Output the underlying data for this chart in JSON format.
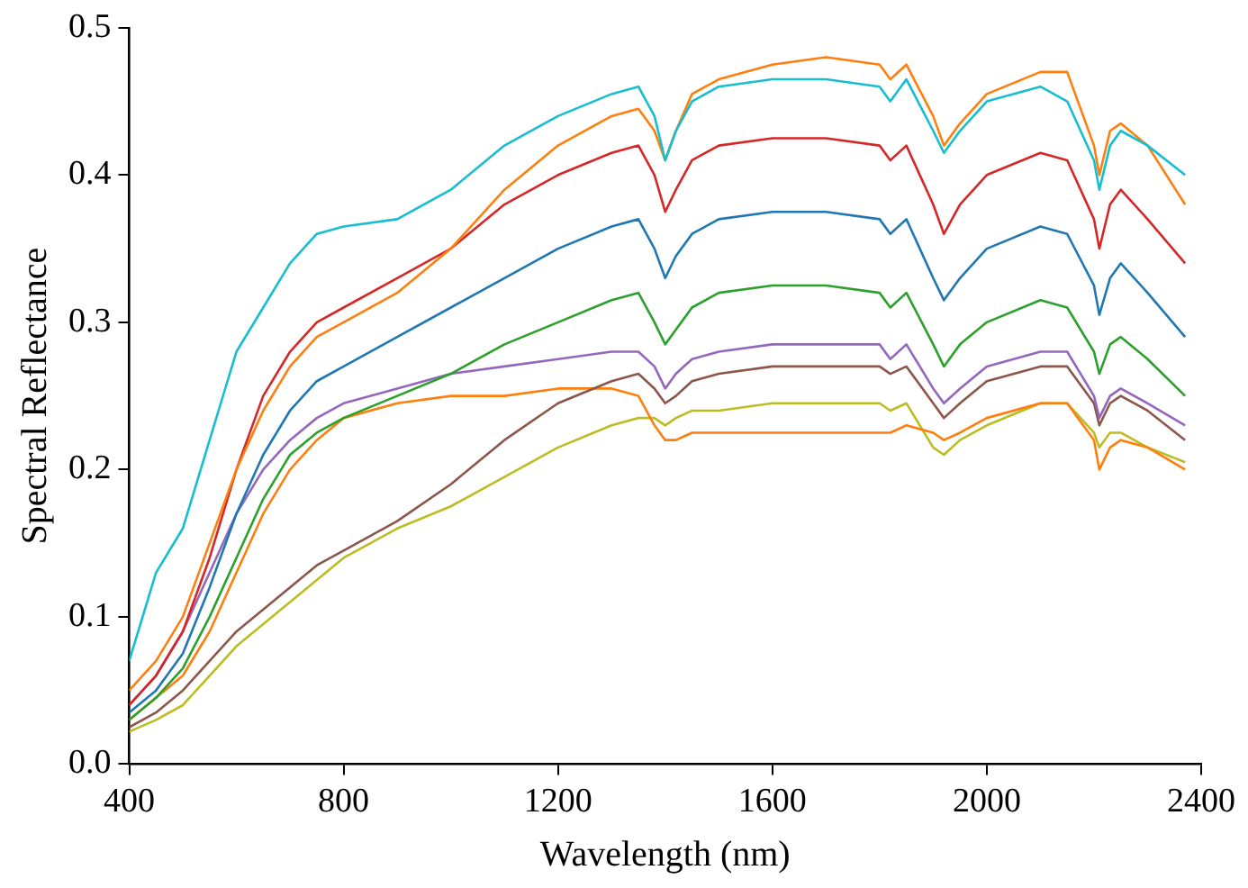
{
  "chart_data": {
    "type": "line",
    "xlabel": "Wavelength (nm)",
    "ylabel": "Spectral Reflectance",
    "x": [
      400,
      450,
      500,
      550,
      600,
      650,
      700,
      750,
      800,
      900,
      1000,
      1100,
      1200,
      1300,
      1350,
      1380,
      1400,
      1420,
      1450,
      1500,
      1600,
      1700,
      1800,
      1820,
      1850,
      1900,
      1920,
      1950,
      2000,
      2100,
      2150,
      2200,
      2210,
      2230,
      2250,
      2300,
      2370
    ],
    "xlim": [
      400,
      2400
    ],
    "xticks": [
      400,
      800,
      1200,
      1600,
      2000,
      2400
    ],
    "ylim": [
      0,
      0.5
    ],
    "yticks": [
      {
        "value": 0,
        "label": "0.0"
      },
      0.1,
      0.2,
      0.3,
      0.4,
      0.5
    ],
    "grid": false,
    "legend": false,
    "marker": "none",
    "line_style": "solid",
    "series": [
      {
        "color": "#17becf",
        "values": [
          0.07,
          0.13,
          0.16,
          0.22,
          0.28,
          0.31,
          0.34,
          0.36,
          0.365,
          0.37,
          0.39,
          0.42,
          0.44,
          0.455,
          0.46,
          0.44,
          0.41,
          0.43,
          0.45,
          0.46,
          0.465,
          0.465,
          0.46,
          0.45,
          0.465,
          0.43,
          0.415,
          0.43,
          0.45,
          0.46,
          0.45,
          0.41,
          0.39,
          0.42,
          0.43,
          0.42,
          0.4
        ]
      },
      {
        "color": "#ff7f0e",
        "values": [
          0.05,
          0.07,
          0.1,
          0.15,
          0.2,
          0.24,
          0.27,
          0.29,
          0.3,
          0.32,
          0.35,
          0.39,
          0.42,
          0.44,
          0.445,
          0.43,
          0.41,
          0.43,
          0.455,
          0.465,
          0.475,
          0.48,
          0.475,
          0.465,
          0.475,
          0.44,
          0.42,
          0.435,
          0.455,
          0.47,
          0.47,
          0.42,
          0.4,
          0.43,
          0.435,
          0.42,
          0.38
        ]
      },
      {
        "color": "#d62728",
        "values": [
          0.04,
          0.06,
          0.09,
          0.14,
          0.2,
          0.25,
          0.28,
          0.3,
          0.31,
          0.33,
          0.35,
          0.38,
          0.4,
          0.415,
          0.42,
          0.4,
          0.375,
          0.39,
          0.41,
          0.42,
          0.425,
          0.425,
          0.42,
          0.41,
          0.42,
          0.38,
          0.36,
          0.38,
          0.4,
          0.415,
          0.41,
          0.37,
          0.35,
          0.38,
          0.39,
          0.37,
          0.34
        ]
      },
      {
        "color": "#1f77b4",
        "values": [
          0.035,
          0.05,
          0.075,
          0.12,
          0.17,
          0.21,
          0.24,
          0.26,
          0.27,
          0.29,
          0.31,
          0.33,
          0.35,
          0.365,
          0.37,
          0.35,
          0.33,
          0.345,
          0.36,
          0.37,
          0.375,
          0.375,
          0.37,
          0.36,
          0.37,
          0.33,
          0.315,
          0.33,
          0.35,
          0.365,
          0.36,
          0.325,
          0.305,
          0.33,
          0.34,
          0.32,
          0.29
        ]
      },
      {
        "color": "#2ca02c",
        "values": [
          0.03,
          0.045,
          0.065,
          0.1,
          0.14,
          0.18,
          0.21,
          0.225,
          0.235,
          0.25,
          0.265,
          0.285,
          0.3,
          0.315,
          0.32,
          0.3,
          0.285,
          0.295,
          0.31,
          0.32,
          0.325,
          0.325,
          0.32,
          0.31,
          0.32,
          0.285,
          0.27,
          0.285,
          0.3,
          0.315,
          0.31,
          0.28,
          0.265,
          0.285,
          0.29,
          0.275,
          0.25
        ]
      },
      {
        "color": "#9467bd",
        "values": [
          0.04,
          0.06,
          0.09,
          0.13,
          0.17,
          0.2,
          0.22,
          0.235,
          0.245,
          0.255,
          0.265,
          0.27,
          0.275,
          0.28,
          0.28,
          0.27,
          0.255,
          0.265,
          0.275,
          0.28,
          0.285,
          0.285,
          0.285,
          0.275,
          0.285,
          0.255,
          0.245,
          0.255,
          0.27,
          0.28,
          0.28,
          0.25,
          0.235,
          0.25,
          0.255,
          0.245,
          0.23
        ]
      },
      {
        "color": "#8c564b",
        "values": [
          0.025,
          0.035,
          0.05,
          0.07,
          0.09,
          0.105,
          0.12,
          0.135,
          0.145,
          0.165,
          0.19,
          0.22,
          0.245,
          0.26,
          0.265,
          0.255,
          0.245,
          0.25,
          0.26,
          0.265,
          0.27,
          0.27,
          0.27,
          0.265,
          0.27,
          0.245,
          0.235,
          0.245,
          0.26,
          0.27,
          0.27,
          0.245,
          0.23,
          0.245,
          0.25,
          0.24,
          0.22
        ]
      },
      {
        "color": "#ff7f0e",
        "values": [
          0.03,
          0.045,
          0.06,
          0.09,
          0.13,
          0.17,
          0.2,
          0.22,
          0.235,
          0.245,
          0.25,
          0.25,
          0.255,
          0.255,
          0.25,
          0.23,
          0.22,
          0.22,
          0.225,
          0.225,
          0.225,
          0.225,
          0.225,
          0.225,
          0.23,
          0.225,
          0.22,
          0.225,
          0.235,
          0.245,
          0.245,
          0.22,
          0.2,
          0.215,
          0.22,
          0.215,
          0.2
        ]
      },
      {
        "color": "#bcbd22",
        "values": [
          0.022,
          0.03,
          0.04,
          0.06,
          0.08,
          0.095,
          0.11,
          0.125,
          0.14,
          0.16,
          0.175,
          0.195,
          0.215,
          0.23,
          0.235,
          0.235,
          0.23,
          0.235,
          0.24,
          0.24,
          0.245,
          0.245,
          0.245,
          0.24,
          0.245,
          0.215,
          0.21,
          0.22,
          0.23,
          0.245,
          0.245,
          0.225,
          0.215,
          0.225,
          0.225,
          0.215,
          0.205
        ]
      }
    ]
  }
}
